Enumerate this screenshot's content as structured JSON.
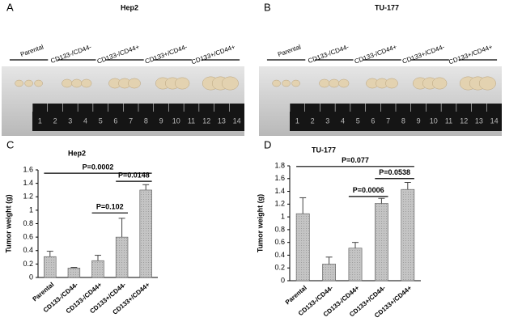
{
  "panels": [
    {
      "label": "A",
      "title": "Hep2",
      "groups": [
        "Parental",
        "CD133-/CD44-",
        "CD133-/CD44+",
        "CD133+/CD44-",
        "CD133+/CD44+"
      ],
      "ruler": [
        1,
        2,
        3,
        4,
        5,
        6,
        7,
        8,
        9,
        10,
        11,
        12,
        13,
        14
      ]
    },
    {
      "label": "B",
      "title": "TU-177",
      "groups": [
        "Parental",
        "CD133-/CD44-",
        "CD133-/CD44+",
        "CD133+/CD44-",
        "CD133+/CD44+"
      ],
      "ruler": [
        1,
        2,
        3,
        4,
        5,
        6,
        7,
        8,
        9,
        10,
        11,
        12,
        13,
        14
      ]
    }
  ],
  "chart_data": [
    {
      "type": "bar",
      "panel": "C",
      "title": "Hep2",
      "y_label": "Tumor weight (g)",
      "categories": [
        "Parental",
        "CD133-/CD44-",
        "CD133-/CD44+",
        "CD133+/CD44-",
        "CD133+/CD44+"
      ],
      "values": [
        0.31,
        0.14,
        0.25,
        0.6,
        1.3
      ],
      "errors": [
        0.08,
        0.01,
        0.08,
        0.28,
        0.08
      ],
      "color": "#c4c4c4",
      "ylim": [
        0,
        1.6
      ],
      "yticks": [
        0,
        0.2,
        0.4,
        0.6,
        0.8,
        1,
        1.2,
        1.4,
        1.6
      ],
      "annotations": [
        "P=0.0002",
        "P=0.102",
        "P=0.0148"
      ]
    },
    {
      "type": "bar",
      "panel": "D",
      "title": "TU-177",
      "y_label": "Tumor weight (g)",
      "categories": [
        "Parental",
        "CD133-/CD44-",
        "CD133-/CD44+",
        "CD133+/CD44-",
        "CD133+/CD44+"
      ],
      "values": [
        1.05,
        0.26,
        0.51,
        1.21,
        1.43
      ],
      "errors": [
        0.25,
        0.11,
        0.09,
        0.08,
        0.11
      ],
      "color": "#c4c4c4",
      "ylim": [
        0,
        1.8
      ],
      "yticks": [
        0,
        0.2,
        0.4,
        0.6,
        0.8,
        1,
        1.2,
        1.4,
        1.6,
        1.8
      ],
      "annotations": [
        "P=0.077",
        "P=0.0006",
        "P=0.0538"
      ]
    }
  ]
}
